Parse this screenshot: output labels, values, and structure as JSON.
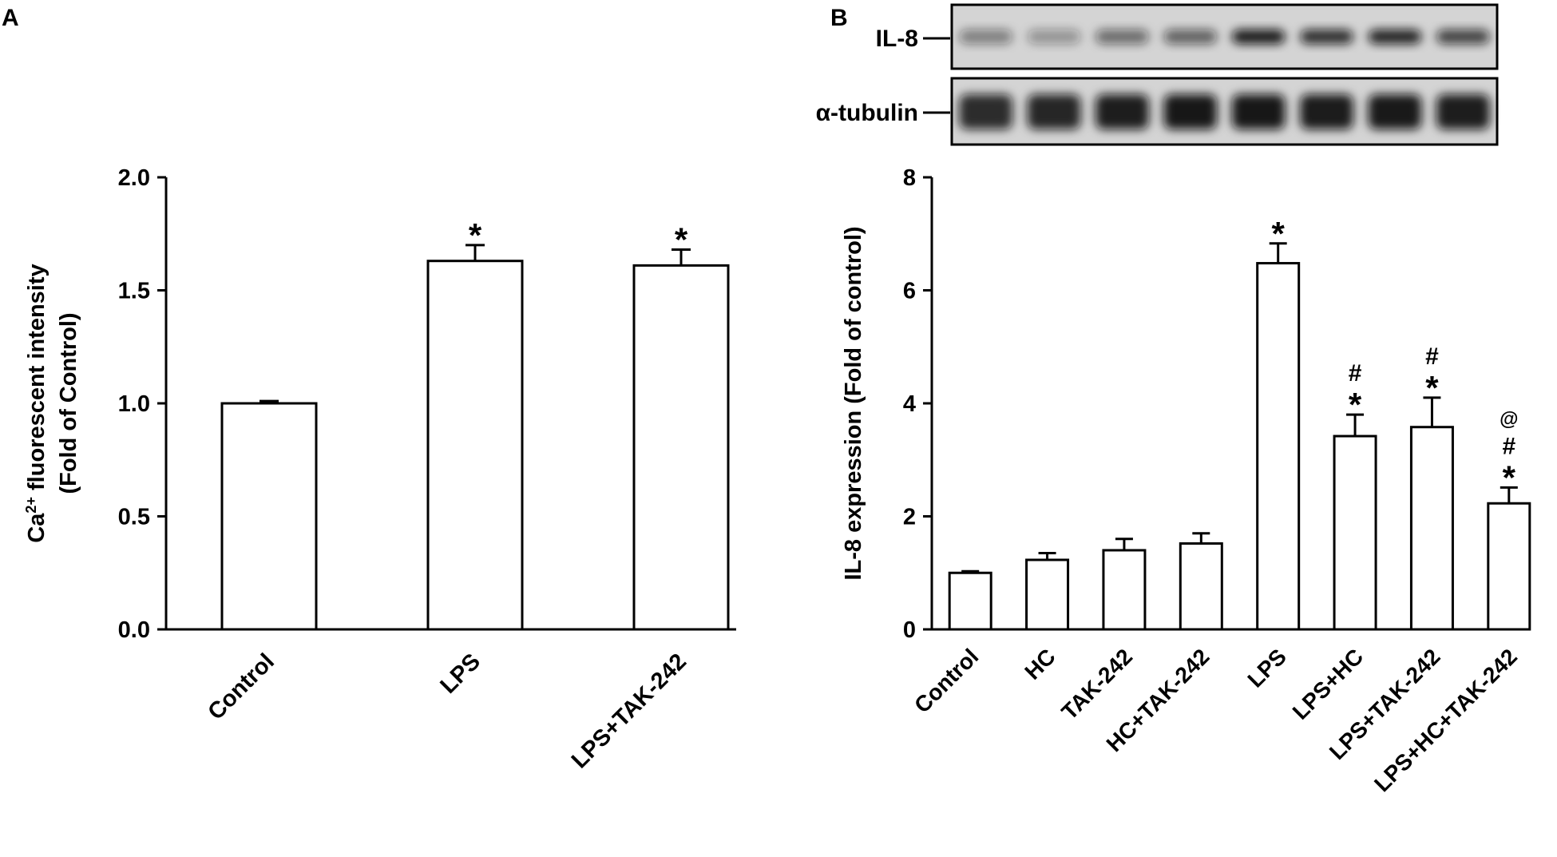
{
  "chart_data": [
    {
      "panel": "A",
      "type": "bar",
      "categories": [
        "Control",
        "LPS",
        "LPS+TAK-242"
      ],
      "values": [
        1.0,
        1.63,
        1.61
      ],
      "errors": [
        0.01,
        0.07,
        0.07
      ],
      "annotations": [
        "",
        "*",
        "*"
      ],
      "ylabel_main": "Ca",
      "ylabel_sup": "2+",
      "ylabel_rest": " fluorescent intensity",
      "ylabel_line2": "(Fold of Control)",
      "ylim": [
        0,
        2.0
      ],
      "yticks": [
        "0.0",
        "0.5",
        "1.0",
        "1.5",
        "2.0"
      ],
      "grid": false
    },
    {
      "panel": "B",
      "type": "bar",
      "categories": [
        "Control",
        "HC",
        "TAK-242",
        "HC+TAK-242",
        "LPS",
        "LPS+HC",
        "LPS+TAK-242",
        "LPS+HC+TAK-242"
      ],
      "values": [
        1.0,
        1.23,
        1.4,
        1.52,
        6.48,
        3.42,
        3.58,
        2.23
      ],
      "errors": [
        0.0,
        0.12,
        0.2,
        0.18,
        0.35,
        0.38,
        0.52,
        0.28
      ],
      "annotations": [
        [],
        [],
        [],
        [],
        [
          "*"
        ],
        [
          "#",
          "*"
        ],
        [
          "#",
          "*"
        ],
        [
          "@",
          "#",
          "*"
        ]
      ],
      "ylabel": "IL-8 expression (Fold of control)",
      "ylim": [
        0,
        8
      ],
      "yticks": [
        "0",
        "2",
        "4",
        "6",
        "8"
      ],
      "grid": false
    }
  ],
  "blot": {
    "rows": [
      {
        "label": "IL-8",
        "intensity": [
          0.45,
          0.35,
          0.55,
          0.6,
          0.95,
          0.85,
          0.9,
          0.75
        ]
      },
      {
        "label": "α-tubulin",
        "intensity": [
          0.85,
          0.88,
          0.92,
          0.95,
          0.95,
          0.93,
          0.94,
          0.92
        ]
      }
    ]
  },
  "colors": {
    "ink": "#000000",
    "bar_fill": "#ffffff",
    "blot_bg": "#d4d4d4"
  }
}
